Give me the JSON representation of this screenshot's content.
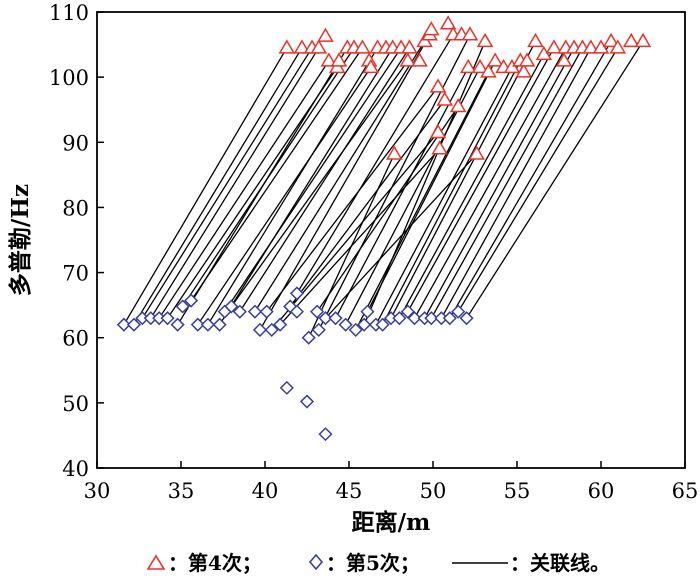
{
  "chart_data": {
    "type": "scatter",
    "xlabel": "距离/m",
    "ylabel": "多普勒/Hz",
    "xlim": [
      30,
      65
    ],
    "ylim": [
      40,
      110
    ],
    "xticks": [
      30,
      35,
      40,
      45,
      50,
      55,
      60,
      65
    ],
    "yticks": [
      40,
      50,
      60,
      70,
      80,
      90,
      100,
      110
    ],
    "grid": false,
    "legend_position": "bottom",
    "legend": {
      "series4": "：第4次；",
      "series5": "：第5次；",
      "links": "：关联线。"
    },
    "colors": {
      "series4": "#e8332a",
      "series5": "#3a3f9a",
      "links": "#000000",
      "axes": "#000000"
    },
    "series": [
      {
        "name": "第4次",
        "marker": "triangle",
        "points": [
          [
            41.3,
            104.5
          ],
          [
            42.2,
            104.5
          ],
          [
            42.8,
            104.5
          ],
          [
            43.2,
            104.5
          ],
          [
            43.6,
            106.3
          ],
          [
            43.8,
            102.5
          ],
          [
            44.3,
            101.5
          ],
          [
            44.4,
            102.5
          ],
          [
            44.9,
            104.5
          ],
          [
            45.3,
            104.5
          ],
          [
            45.8,
            104.5
          ],
          [
            46.2,
            102.5
          ],
          [
            46.3,
            101.5
          ],
          [
            46.7,
            104.5
          ],
          [
            47.2,
            104.5
          ],
          [
            47.6,
            104.5
          ],
          [
            47.7,
            88.2
          ],
          [
            48.1,
            104.5
          ],
          [
            48.5,
            102.5
          ],
          [
            48.6,
            104.5
          ],
          [
            49.2,
            102.5
          ],
          [
            49.5,
            105.5
          ],
          [
            49.8,
            106.5
          ],
          [
            49.9,
            107.3
          ],
          [
            50.3,
            98.5
          ],
          [
            50.3,
            91.5
          ],
          [
            50.4,
            89.0
          ],
          [
            50.7,
            96.5
          ],
          [
            50.9,
            108.2
          ],
          [
            51.2,
            106.5
          ],
          [
            51.5,
            95.5
          ],
          [
            51.7,
            106.5
          ],
          [
            52.1,
            101.5
          ],
          [
            52.2,
            106.5
          ],
          [
            52.6,
            88.2
          ],
          [
            52.8,
            101.5
          ],
          [
            53.1,
            105.5
          ],
          [
            53.3,
            100.8
          ],
          [
            53.7,
            102.5
          ],
          [
            54.2,
            101.5
          ],
          [
            54.7,
            101.5
          ],
          [
            55.2,
            102.5
          ],
          [
            55.4,
            100.8
          ],
          [
            55.6,
            102.5
          ],
          [
            56.1,
            105.5
          ],
          [
            56.6,
            103.5
          ],
          [
            57.2,
            104.5
          ],
          [
            57.8,
            102.5
          ],
          [
            57.9,
            104.5
          ],
          [
            58.4,
            104.5
          ],
          [
            58.9,
            104.5
          ],
          [
            59.4,
            104.5
          ],
          [
            60.0,
            104.5
          ],
          [
            60.6,
            105.5
          ],
          [
            61.0,
            104.5
          ],
          [
            61.8,
            105.5
          ],
          [
            62.5,
            105.5
          ]
        ]
      },
      {
        "name": "第5次",
        "marker": "diamond",
        "points": [
          [
            31.6,
            62.0
          ],
          [
            32.2,
            62.0
          ],
          [
            32.7,
            63.0
          ],
          [
            33.2,
            63.0
          ],
          [
            33.7,
            63.0
          ],
          [
            34.2,
            63.0
          ],
          [
            34.8,
            62.0
          ],
          [
            35.1,
            64.8
          ],
          [
            35.6,
            65.7
          ],
          [
            36.0,
            62.0
          ],
          [
            36.6,
            62.0
          ],
          [
            37.3,
            62.0
          ],
          [
            37.6,
            64.0
          ],
          [
            38.0,
            64.8
          ],
          [
            38.5,
            64.0
          ],
          [
            39.4,
            64.0
          ],
          [
            39.7,
            61.2
          ],
          [
            40.1,
            64.0
          ],
          [
            40.4,
            61.2
          ],
          [
            40.9,
            62.0
          ],
          [
            41.3,
            52.3
          ],
          [
            41.5,
            64.8
          ],
          [
            41.9,
            66.8
          ],
          [
            41.9,
            64.0
          ],
          [
            42.5,
            50.2
          ],
          [
            42.6,
            60.0
          ],
          [
            43.1,
            64.0
          ],
          [
            43.2,
            61.2
          ],
          [
            43.6,
            45.2
          ],
          [
            43.6,
            63.0
          ],
          [
            44.2,
            63.0
          ],
          [
            44.8,
            62.0
          ],
          [
            45.4,
            61.2
          ],
          [
            45.9,
            62.0
          ],
          [
            46.1,
            64.0
          ],
          [
            46.6,
            62.0
          ],
          [
            47.0,
            62.0
          ],
          [
            47.5,
            63.0
          ],
          [
            48.0,
            63.0
          ],
          [
            48.5,
            64.0
          ],
          [
            48.9,
            63.0
          ],
          [
            49.5,
            63.0
          ],
          [
            49.9,
            63.0
          ],
          [
            50.5,
            63.0
          ],
          [
            51.0,
            63.0
          ],
          [
            51.5,
            64.0
          ],
          [
            52.0,
            63.0
          ]
        ]
      }
    ],
    "link_lines": [
      [
        [
          31.6,
          62.0
        ],
        [
          41.3,
          104.5
        ]
      ],
      [
        [
          32.2,
          62.0
        ],
        [
          42.2,
          104.5
        ]
      ],
      [
        [
          32.7,
          63.0
        ],
        [
          42.8,
          104.5
        ]
      ],
      [
        [
          33.2,
          63.0
        ],
        [
          43.2,
          104.5
        ]
      ],
      [
        [
          33.7,
          63.0
        ],
        [
          43.8,
          102.5
        ]
      ],
      [
        [
          34.2,
          63.0
        ],
        [
          44.3,
          101.5
        ]
      ],
      [
        [
          34.8,
          62.0
        ],
        [
          44.9,
          104.5
        ]
      ],
      [
        [
          35.1,
          64.8
        ],
        [
          45.3,
          104.5
        ]
      ],
      [
        [
          35.6,
          65.7
        ],
        [
          45.8,
          104.5
        ]
      ],
      [
        [
          36.0,
          62.0
        ],
        [
          46.3,
          101.5
        ]
      ],
      [
        [
          36.6,
          62.0
        ],
        [
          46.7,
          104.5
        ]
      ],
      [
        [
          37.3,
          62.0
        ],
        [
          47.6,
          104.5
        ]
      ],
      [
        [
          37.6,
          64.0
        ],
        [
          48.1,
          104.5
        ]
      ],
      [
        [
          38.0,
          64.8
        ],
        [
          48.5,
          102.5
        ]
      ],
      [
        [
          38.5,
          64.0
        ],
        [
          48.6,
          104.5
        ]
      ],
      [
        [
          39.4,
          64.0
        ],
        [
          49.5,
          105.5
        ]
      ],
      [
        [
          39.7,
          61.2
        ],
        [
          49.8,
          106.5
        ]
      ],
      [
        [
          40.1,
          64.0
        ],
        [
          50.3,
          98.5
        ]
      ],
      [
        [
          40.4,
          61.2
        ],
        [
          50.3,
          91.5
        ]
      ],
      [
        [
          40.9,
          62.0
        ],
        [
          50.4,
          89.0
        ]
      ],
      [
        [
          41.5,
          64.8
        ],
        [
          50.7,
          96.5
        ]
      ],
      [
        [
          41.9,
          66.8
        ],
        [
          51.2,
          106.5
        ]
      ],
      [
        [
          42.6,
          60.0
        ],
        [
          47.7,
          88.2
        ]
      ],
      [
        [
          43.1,
          64.0
        ],
        [
          51.5,
          95.5
        ]
      ],
      [
        [
          43.2,
          61.2
        ],
        [
          52.2,
          106.5
        ]
      ],
      [
        [
          43.6,
          63.0
        ],
        [
          52.6,
          88.2
        ]
      ],
      [
        [
          44.2,
          63.0
        ],
        [
          52.1,
          101.5
        ]
      ],
      [
        [
          44.8,
          62.0
        ],
        [
          52.8,
          101.5
        ]
      ],
      [
        [
          45.4,
          61.2
        ],
        [
          53.3,
          100.8
        ]
      ],
      [
        [
          45.9,
          62.0
        ],
        [
          53.1,
          105.5
        ]
      ],
      [
        [
          46.1,
          64.0
        ],
        [
          53.7,
          102.5
        ]
      ],
      [
        [
          46.6,
          62.0
        ],
        [
          54.7,
          101.5
        ]
      ],
      [
        [
          47.0,
          62.0
        ],
        [
          55.2,
          102.5
        ]
      ],
      [
        [
          47.5,
          63.0
        ],
        [
          56.1,
          105.5
        ]
      ],
      [
        [
          48.0,
          63.0
        ],
        [
          56.6,
          103.5
        ]
      ],
      [
        [
          48.5,
          64.0
        ],
        [
          57.2,
          104.5
        ]
      ],
      [
        [
          48.9,
          63.0
        ],
        [
          57.9,
          104.5
        ]
      ],
      [
        [
          49.5,
          63.0
        ],
        [
          58.4,
          104.5
        ]
      ],
      [
        [
          49.9,
          63.0
        ],
        [
          58.9,
          104.5
        ]
      ],
      [
        [
          50.5,
          63.0
        ],
        [
          59.4,
          104.5
        ]
      ],
      [
        [
          51.0,
          63.0
        ],
        [
          60.6,
          105.5
        ]
      ],
      [
        [
          51.5,
          64.0
        ],
        [
          61.0,
          104.5
        ]
      ],
      [
        [
          52.0,
          63.0
        ],
        [
          62.5,
          105.5
        ]
      ]
    ]
  }
}
